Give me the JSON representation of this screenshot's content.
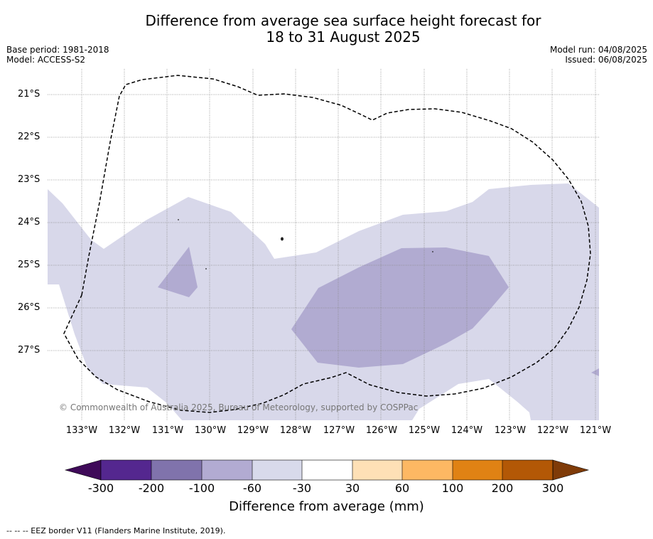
{
  "title": {
    "line1": "Difference from average sea surface height forecast for",
    "line2": "18 to 31 August 2025"
  },
  "meta_left": {
    "base_period": "Base period: 1981-2018",
    "model": "Model: ACCESS-S2"
  },
  "meta_right": {
    "model_run": "Model run: 04/08/2025",
    "issued": "Issued: 06/08/2025"
  },
  "map": {
    "lat_labels": [
      "21°S",
      "22°S",
      "23°S",
      "24°S",
      "25°S",
      "26°S",
      "27°S"
    ],
    "lon_labels": [
      "133°W",
      "132°W",
      "131°W",
      "130°W",
      "129°W",
      "128°W",
      "127°W",
      "126°W",
      "125°W",
      "124°W",
      "123°W",
      "122°W",
      "121°W"
    ],
    "copyright": "© Commonwealth of Australia 2025, Bureau of Meteorology, supported by COSPPac",
    "colors": {
      "class_minus60_minus30": "#d8d8ea",
      "class_minus100_minus60": "#b1abd1",
      "grid": "#888888",
      "eez_border": "#000000"
    }
  },
  "colorbar": {
    "ticks": [
      "-300",
      "-200",
      "-100",
      "-60",
      "-30",
      "30",
      "60",
      "100",
      "200",
      "300"
    ],
    "label": "Difference from average (mm)",
    "colors": [
      "#3f0a59",
      "#54278f",
      "#8073ac",
      "#b2abd2",
      "#d8daeb",
      "#ffffff",
      "#fee0b6",
      "#fdb863",
      "#e08214",
      "#b35806",
      "#7f3b08"
    ]
  },
  "footnote": "--  --  -- EEZ border V11 (Flanders Marine Institute, 2019)."
}
